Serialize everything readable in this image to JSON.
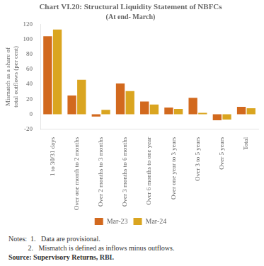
{
  "chart_data": {
    "type": "bar",
    "title": "Chart VI.20: Structural Liquidity Statement of NBFCs",
    "subtitle": "(At end- March)",
    "categories": [
      "1 to 30/31 days",
      "Over one month to 2 months",
      "Over 2 months to 3 months",
      "Over 3 months to 6 months",
      "Over 6 months to one year",
      "Over one year to 3 years",
      "Over 3 to 5 years",
      "Over 5 years",
      "Total"
    ],
    "series": [
      {
        "name": "Mar-23",
        "color": "#D2691E",
        "values": [
          104,
          25,
          -3,
          41,
          17,
          9,
          22,
          -8,
          10
        ]
      },
      {
        "name": "Mar-24",
        "color": "#DAA520",
        "values": [
          113,
          46,
          6,
          31,
          13,
          7,
          2,
          -7,
          8
        ]
      }
    ],
    "ylabel": "Mismatch as a share of\ntotal outflows (per cent)",
    "ylim": [
      -20,
      120
    ],
    "yticks": [
      -20,
      0,
      20,
      40,
      60,
      80,
      100,
      120
    ],
    "grid": false,
    "legend": "bottom",
    "annotations": [
      "Notes:  1.   Data are provisional.",
      "           2.   Mismatch is defined as inflows minus outflows.",
      "Source: Supervisory Returns, RBI."
    ]
  }
}
